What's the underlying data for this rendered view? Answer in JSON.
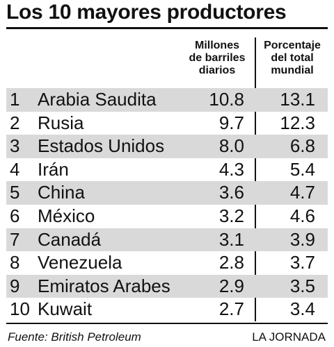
{
  "title": "Los 10 mayores productores",
  "columns": {
    "millones": [
      "Millones",
      "de barriles",
      "diarios"
    ],
    "porcentaje": [
      "Porcentaje",
      "del total",
      "mundial"
    ]
  },
  "rows": [
    {
      "rank": "1",
      "country": "Arabia Saudita",
      "millones": "10.8",
      "porcentaje": "13.1"
    },
    {
      "rank": "2",
      "country": "Rusia",
      "millones": "9.7",
      "porcentaje": "12.3"
    },
    {
      "rank": "3",
      "country": "Estados Unidos",
      "millones": "8.0",
      "porcentaje": "6.8"
    },
    {
      "rank": "4",
      "country": "Irán",
      "millones": "4.3",
      "porcentaje": "5.4"
    },
    {
      "rank": "5",
      "country": "China",
      "millones": "3.6",
      "porcentaje": "4.7"
    },
    {
      "rank": "6",
      "country": "México",
      "millones": "3.2",
      "porcentaje": "4.6"
    },
    {
      "rank": "7",
      "country": "Canadá",
      "millones": "3.1",
      "porcentaje": "3.9"
    },
    {
      "rank": "8",
      "country": "Venezuela",
      "millones": "2.8",
      "porcentaje": "3.7"
    },
    {
      "rank": "9",
      "country": "Emiratos Arabes",
      "millones": "2.9",
      "porcentaje": "3.5"
    },
    {
      "rank": "10",
      "country": "Kuwait",
      "millones": "2.7",
      "porcentaje": "3.4"
    }
  ],
  "footer": {
    "source": "Fuente: British Petroleum",
    "credit": "LA JORNADA"
  },
  "colors": {
    "shade": "#d9d9d9",
    "ink": "#111111"
  }
}
